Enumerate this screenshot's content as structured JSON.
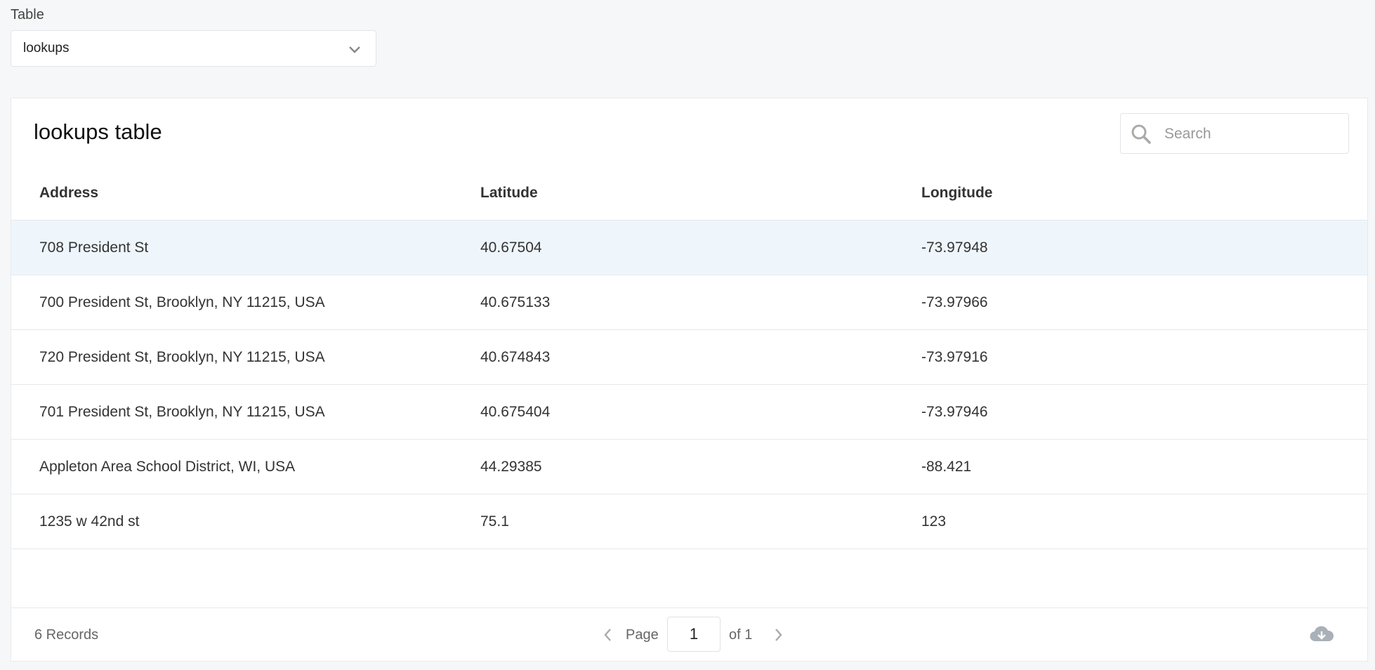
{
  "selector": {
    "label": "Table",
    "value": "lookups"
  },
  "panel": {
    "title": "lookups table",
    "search_placeholder": "Search"
  },
  "table": {
    "columns": [
      "Address",
      "Latitude",
      "Longitude"
    ],
    "rows": [
      [
        "708 President St",
        "40.67504",
        "-73.97948"
      ],
      [
        "700 President St, Brooklyn, NY 11215, USA",
        "40.675133",
        "-73.97966"
      ],
      [
        "720 President St, Brooklyn, NY 11215, USA",
        "40.674843",
        "-73.97916"
      ],
      [
        "701 President St, Brooklyn, NY 11215, USA",
        "40.675404",
        "-73.97946"
      ],
      [
        "Appleton Area School District, WI, USA",
        "44.29385",
        "-88.421"
      ],
      [
        "1235 w 42nd st",
        "75.1",
        "123"
      ]
    ]
  },
  "footer": {
    "records": "6 Records",
    "page_label": "Page",
    "page": "1",
    "of_pages": "of 1"
  }
}
